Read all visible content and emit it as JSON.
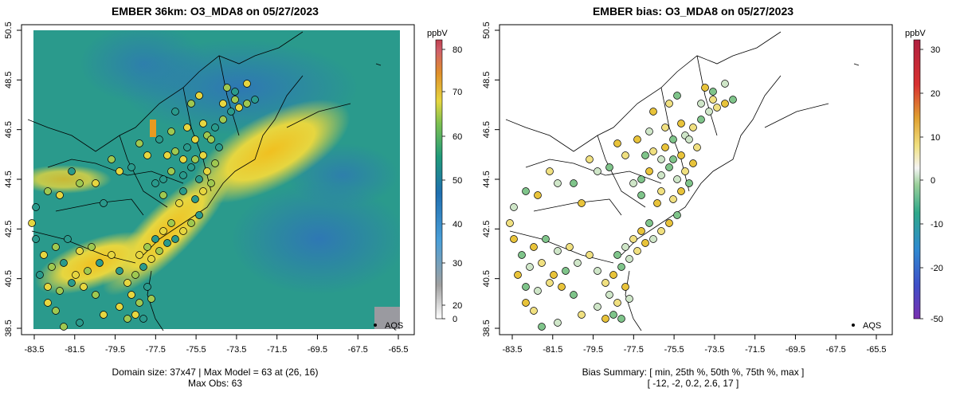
{
  "left_panel": {
    "title": "EMBER 36km: O3_MDA8 on 05/27/2023",
    "colorbar_unit": "ppbV",
    "colorbar_ticks": [
      "80",
      "70",
      "60",
      "50",
      "40",
      "30",
      "20",
      "0"
    ],
    "legend_label": "AQS",
    "footer_line1": "Domain size: 37x47 | Max Model = 63 at (26, 16)",
    "footer_line2": "Max Obs: 63"
  },
  "right_panel": {
    "title": "EMBER bias: O3_MDA8 on 05/27/2023",
    "colorbar_unit": "ppbV",
    "colorbar_ticks": [
      "30",
      "20",
      "10",
      "0",
      "-10",
      "-20",
      "-50"
    ],
    "legend_label": "AQS",
    "footer_line1": "Bias Summary: [ min, 25th %, 50th %, 75th %, max ]",
    "footer_line2": "[ -12,   -2,   0.2,   2.6,   17 ]"
  },
  "x_ticks": [
    "-83.5",
    "-81.5",
    "-79.5",
    "-77.5",
    "-75.5",
    "-73.5",
    "-71.5",
    "-69.5",
    "-67.5",
    "-65.5"
  ],
  "y_ticks": [
    "50.5",
    "48.5",
    "46.5",
    "44.5",
    "42.5",
    "40.5",
    "38.5"
  ],
  "colors": {
    "high": "#f2d43a",
    "mid": "#2ea58a",
    "low": "#2f74b8",
    "bias_pos": "#e8c33a",
    "bias_neg": "#7fc48a"
  }
}
